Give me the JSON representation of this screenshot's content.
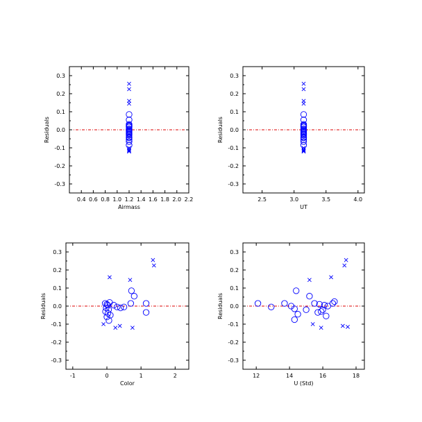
{
  "colors": {
    "marker": "#0000ff",
    "zero_line": "#dd0000",
    "axis": "#000000"
  },
  "chart_data": [
    {
      "type": "scatter",
      "xlabel": "Airmass",
      "ylabel": "Residuals",
      "xlim": [
        0.2,
        2.2
      ],
      "ylim": [
        -0.35,
        0.35
      ],
      "xticks": [
        0.4,
        0.6,
        0.8,
        1.0,
        1.2,
        1.4,
        1.6,
        1.8,
        2.0,
        2.2
      ],
      "xticklabels": [
        "0.4",
        "0.6",
        "0.8",
        "1.0",
        "1.2",
        "1.4",
        "1.6",
        "1.8",
        "2.0",
        "2.2"
      ],
      "yticks": [
        -0.3,
        -0.2,
        -0.1,
        0.0,
        0.1,
        0.2,
        0.3
      ],
      "yticklabels": [
        "-0.3",
        "-0.2",
        "-0.1",
        "0.0",
        "0.1",
        "0.2",
        "0.3"
      ],
      "reference_line_y": 0.0,
      "series": [
        {
          "marker": "circle",
          "x": [
            1.2,
            1.2,
            1.2,
            1.2,
            1.2,
            1.2,
            1.2,
            1.2,
            1.2,
            1.2,
            1.2,
            1.2,
            1.2,
            1.2,
            1.2,
            1.2,
            1.2,
            1.2,
            1.2,
            1.2
          ],
          "y": [
            0.085,
            0.055,
            0.03,
            0.025,
            0.02,
            0.02,
            0.015,
            0.005,
            0.0,
            -0.005,
            -0.01,
            -0.015,
            -0.02,
            -0.025,
            -0.03,
            -0.04,
            -0.045,
            -0.055,
            -0.065,
            -0.085
          ]
        },
        {
          "marker": "x",
          "x": [
            1.2,
            1.2,
            1.2,
            1.2,
            1.2,
            1.2,
            1.2,
            1.2,
            1.2
          ],
          "y": [
            0.255,
            0.225,
            0.16,
            0.145,
            -0.1,
            -0.11,
            -0.115,
            -0.12,
            -0.12
          ]
        }
      ]
    },
    {
      "type": "scatter",
      "xlabel": "UT",
      "ylabel": "Residuals",
      "xlim": [
        2.2,
        4.1
      ],
      "ylim": [
        -0.35,
        0.35
      ],
      "xticks": [
        2.5,
        3.0,
        3.5,
        4.0
      ],
      "xticklabels": [
        "2.5",
        "3.0",
        "3.5",
        "4.0"
      ],
      "yticks": [
        -0.3,
        -0.2,
        -0.1,
        0.0,
        0.1,
        0.2,
        0.3
      ],
      "yticklabels": [
        "-0.3",
        "-0.2",
        "-0.1",
        "0.0",
        "0.1",
        "0.2",
        "0.3"
      ],
      "reference_line_y": 0.0,
      "series": [
        {
          "marker": "circle",
          "x": [
            3.15,
            3.15,
            3.15,
            3.15,
            3.15,
            3.15,
            3.15,
            3.15,
            3.15,
            3.15,
            3.15,
            3.15,
            3.15,
            3.15,
            3.15,
            3.15,
            3.15,
            3.15,
            3.15,
            3.15
          ],
          "y": [
            0.085,
            0.055,
            0.03,
            0.025,
            0.02,
            0.02,
            0.015,
            0.005,
            0.0,
            -0.005,
            -0.01,
            -0.015,
            -0.02,
            -0.025,
            -0.03,
            -0.04,
            -0.045,
            -0.055,
            -0.065,
            -0.085
          ]
        },
        {
          "marker": "x",
          "x": [
            3.15,
            3.15,
            3.15,
            3.15,
            3.15,
            3.15,
            3.15,
            3.15,
            3.15
          ],
          "y": [
            0.255,
            0.225,
            0.16,
            0.145,
            -0.1,
            -0.11,
            -0.115,
            -0.12,
            -0.12
          ]
        }
      ]
    },
    {
      "type": "scatter",
      "xlabel": "Color",
      "ylabel": "Residuals",
      "xlim": [
        -1.2,
        2.4
      ],
      "ylim": [
        -0.35,
        0.35
      ],
      "xticks": [
        -1,
        0,
        1,
        2
      ],
      "xticklabels": [
        "-1",
        "0",
        "1",
        "2"
      ],
      "yticks": [
        -0.3,
        -0.2,
        -0.1,
        0.0,
        0.1,
        0.2,
        0.3
      ],
      "yticklabels": [
        "-0.3",
        "-0.2",
        "-0.1",
        "0.0",
        "0.1",
        "0.2",
        "0.3"
      ],
      "reference_line_y": 0.0,
      "series": [
        {
          "marker": "circle",
          "x": [
            -0.05,
            0.0,
            0.02,
            -0.02,
            0.05,
            -0.04,
            0.1,
            0.06,
            0.08,
            0.2,
            0.3,
            0.4,
            0.5,
            0.72,
            0.8,
            0.7,
            1.15,
            1.15,
            0.0,
            0.03
          ],
          "y": [
            0.015,
            0.01,
            0.005,
            -0.01,
            -0.02,
            -0.03,
            -0.05,
            -0.08,
            0.02,
            0.005,
            -0.005,
            -0.01,
            -0.005,
            0.085,
            0.055,
            0.015,
            0.015,
            -0.035,
            -0.06,
            -0.04
          ]
        },
        {
          "marker": "x",
          "x": [
            0.08,
            -0.1,
            0.25,
            0.38,
            0.68,
            0.75,
            1.35,
            1.38
          ],
          "y": [
            0.16,
            -0.1,
            -0.12,
            -0.11,
            0.145,
            -0.12,
            0.255,
            0.225
          ]
        }
      ]
    },
    {
      "type": "scatter",
      "xlabel": "U (Std)",
      "ylabel": "Residuals",
      "xlim": [
        11.2,
        18.5
      ],
      "ylim": [
        -0.35,
        0.35
      ],
      "xticks": [
        12,
        14,
        16,
        18
      ],
      "xticklabels": [
        "12",
        "14",
        "16",
        "18"
      ],
      "yticks": [
        -0.3,
        -0.2,
        -0.1,
        0.0,
        0.1,
        0.2,
        0.3
      ],
      "yticklabels": [
        "-0.3",
        "-0.2",
        "-0.1",
        "0.0",
        "0.1",
        "0.2",
        "0.3"
      ],
      "reference_line_y": 0.0,
      "series": [
        {
          "marker": "circle",
          "x": [
            12.1,
            12.9,
            13.7,
            14.1,
            14.3,
            14.4,
            14.3,
            14.5,
            15.0,
            15.2,
            15.5,
            15.7,
            15.8,
            16.0,
            16.1,
            16.2,
            16.3,
            16.6,
            16.7,
            15.9
          ],
          "y": [
            0.015,
            -0.005,
            0.015,
            0.0,
            -0.015,
            0.085,
            -0.075,
            -0.045,
            -0.02,
            0.055,
            0.015,
            -0.035,
            0.01,
            -0.02,
            0.005,
            -0.055,
            0.0,
            0.015,
            0.025,
            -0.03
          ]
        },
        {
          "marker": "x",
          "x": [
            15.2,
            15.4,
            15.9,
            16.5,
            17.2,
            17.4,
            17.3,
            17.5
          ],
          "y": [
            0.145,
            -0.1,
            -0.12,
            0.16,
            -0.11,
            0.255,
            0.225,
            -0.115
          ]
        }
      ]
    }
  ]
}
